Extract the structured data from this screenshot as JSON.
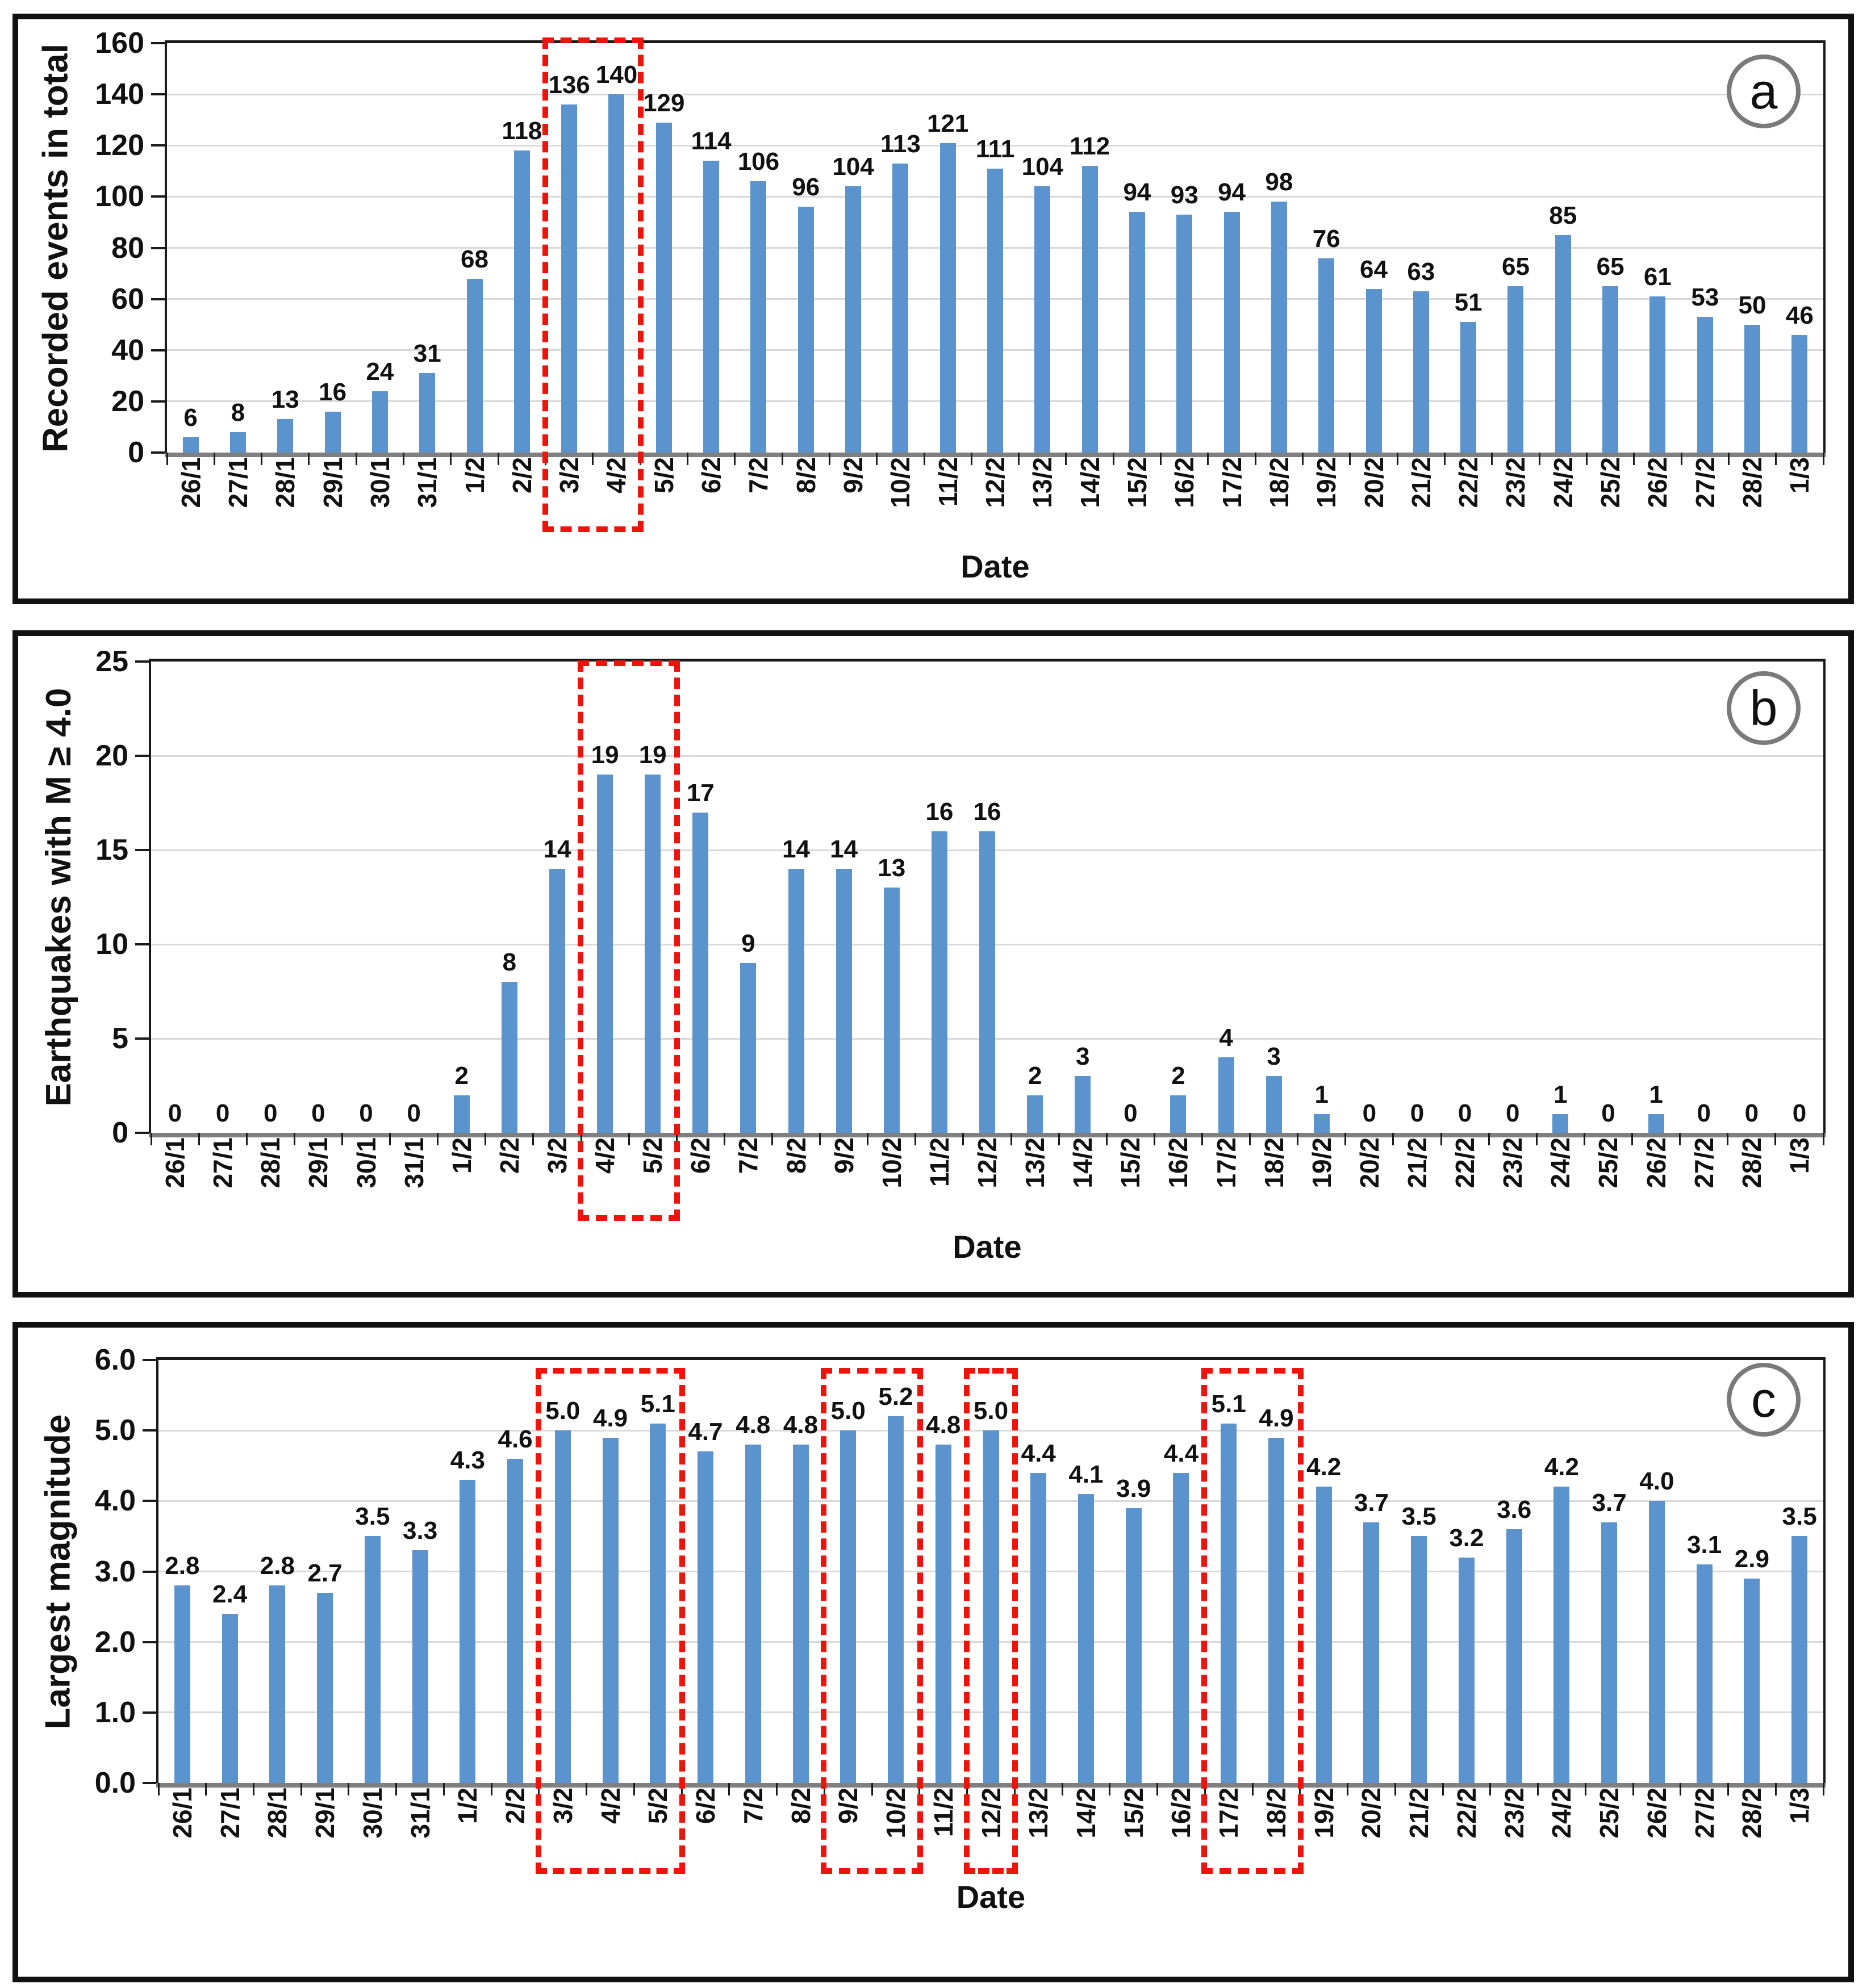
{
  "styles": {
    "bar_color": "#5b93ce",
    "highlight_color": "#ee130b",
    "grid_color": "#d9d9d9",
    "axis_color": "#1a1a1a",
    "baseline_color": "#7f7f7f",
    "panel_border_color": "#111111",
    "badge_ring_color": "#7a7a7a"
  },
  "chart_data": [
    {
      "type": "bar",
      "panel": "a",
      "title": "",
      "ylabel": "Recorded events in total",
      "xlabel": "Date",
      "ylim": [
        0,
        160
      ],
      "ytick_labels": [
        "0",
        "20",
        "40",
        "60",
        "80",
        "100",
        "120",
        "140",
        "160"
      ],
      "grid": true,
      "legend": "none",
      "categories": [
        "26/1",
        "27/1",
        "28/1",
        "29/1",
        "30/1",
        "31/1",
        "1/2",
        "2/2",
        "3/2",
        "4/2",
        "5/2",
        "6/2",
        "7/2",
        "8/2",
        "9/2",
        "10/2",
        "11/2",
        "12/2",
        "13/2",
        "14/2",
        "15/2",
        "16/2",
        "17/2",
        "18/2",
        "19/2",
        "20/2",
        "21/2",
        "22/2",
        "23/2",
        "24/2",
        "25/2",
        "26/2",
        "27/2",
        "28/2",
        "1/3"
      ],
      "values": [
        6,
        8,
        13,
        16,
        24,
        31,
        68,
        118,
        136,
        140,
        129,
        114,
        106,
        96,
        104,
        113,
        121,
        111,
        104,
        112,
        94,
        93,
        94,
        98,
        76,
        64,
        63,
        51,
        65,
        85,
        65,
        61,
        53,
        50,
        46
      ],
      "bar_labels": [
        "6",
        "8",
        "13",
        "16",
        "24",
        "31",
        "68",
        "118",
        "136",
        "140",
        "129",
        "114",
        "106",
        "96",
        "104",
        "113",
        "121",
        "111",
        "104",
        "112",
        "94",
        "93",
        "94",
        "98",
        "76",
        "64",
        "63",
        "51",
        "65",
        "85",
        "65",
        "61",
        "53",
        "50",
        "46"
      ],
      "highlight_boxes": [
        {
          "start_index": 8,
          "end_index": 9,
          "categories": [
            "3/2",
            "4/2"
          ]
        }
      ]
    },
    {
      "type": "bar",
      "panel": "b",
      "title": "",
      "ylabel": "Earthquakes with M ≥ 4.0",
      "xlabel": "Date",
      "ylim": [
        0,
        25
      ],
      "ytick_labels": [
        "0",
        "5",
        "10",
        "15",
        "20",
        "25"
      ],
      "grid": true,
      "legend": "none",
      "categories": [
        "26/1",
        "27/1",
        "28/1",
        "29/1",
        "30/1",
        "31/1",
        "1/2",
        "2/2",
        "3/2",
        "4/2",
        "5/2",
        "6/2",
        "7/2",
        "8/2",
        "9/2",
        "10/2",
        "11/2",
        "12/2",
        "13/2",
        "14/2",
        "15/2",
        "16/2",
        "17/2",
        "18/2",
        "19/2",
        "20/2",
        "21/2",
        "22/2",
        "23/2",
        "24/2",
        "25/2",
        "26/2",
        "27/2",
        "28/2",
        "1/3"
      ],
      "values": [
        0,
        0,
        0,
        0,
        0,
        0,
        2,
        8,
        14,
        19,
        19,
        17,
        9,
        14,
        14,
        13,
        16,
        16,
        2,
        3,
        0,
        2,
        4,
        3,
        1,
        0,
        0,
        0,
        0,
        1,
        0,
        1,
        0,
        0,
        0
      ],
      "bar_labels": [
        "0",
        "0",
        "0",
        "0",
        "0",
        "0",
        "2",
        "8",
        "14",
        "19",
        "19",
        "17",
        "9",
        "14",
        "14",
        "13",
        "16",
        "16",
        "2",
        "3",
        "0",
        "2",
        "4",
        "3",
        "1",
        "0",
        "0",
        "0",
        "0",
        "1",
        "0",
        "1",
        "0",
        "0",
        "0"
      ],
      "highlight_boxes": [
        {
          "start_index": 9,
          "end_index": 10,
          "categories": [
            "4/2",
            "5/2"
          ]
        }
      ]
    },
    {
      "type": "bar",
      "panel": "c",
      "title": "",
      "ylabel": "Largest magnitude",
      "xlabel": "Date",
      "ylim": [
        0,
        6
      ],
      "ytick_labels": [
        "0.0",
        "1.0",
        "2.0",
        "3.0",
        "4.0",
        "5.0",
        "6.0"
      ],
      "grid": true,
      "legend": "none",
      "categories": [
        "26/1",
        "27/1",
        "28/1",
        "29/1",
        "30/1",
        "31/1",
        "1/2",
        "2/2",
        "3/2",
        "4/2",
        "5/2",
        "6/2",
        "7/2",
        "8/2",
        "9/2",
        "10/2",
        "11/2",
        "12/2",
        "13/2",
        "14/2",
        "15/2",
        "16/2",
        "17/2",
        "18/2",
        "19/2",
        "20/2",
        "21/2",
        "22/2",
        "23/2",
        "24/2",
        "25/2",
        "26/2",
        "27/2",
        "28/2",
        "1/3"
      ],
      "values": [
        2.8,
        2.4,
        2.8,
        2.7,
        3.5,
        3.3,
        4.3,
        4.6,
        5.0,
        4.9,
        5.1,
        4.7,
        4.8,
        4.8,
        5.0,
        5.2,
        4.8,
        5.0,
        4.4,
        4.1,
        3.9,
        4.4,
        5.1,
        4.9,
        4.2,
        3.7,
        3.5,
        3.2,
        3.6,
        4.2,
        3.7,
        4.0,
        3.1,
        2.9,
        3.5
      ],
      "bar_labels": [
        "2.8",
        "2.4",
        "2.8",
        "2.7",
        "3.5",
        "3.3",
        "4.3",
        "4.6",
        "5.0",
        "4.9",
        "5.1",
        "4.7",
        "4.8",
        "4.8",
        "5.0",
        "5.2",
        "4.8",
        "5.0",
        "4.4",
        "4.1",
        "3.9",
        "4.4",
        "5.1",
        "4.9",
        "4.2",
        "3.7",
        "3.5",
        "3.2",
        "3.6",
        "4.2",
        "3.7",
        "4.0",
        "3.1",
        "2.9",
        "3.5"
      ],
      "highlight_boxes": [
        {
          "start_index": 8,
          "end_index": 10,
          "categories": [
            "3/2",
            "4/2",
            "5/2"
          ]
        },
        {
          "start_index": 14,
          "end_index": 15,
          "categories": [
            "9/2",
            "10/2"
          ]
        },
        {
          "start_index": 17,
          "end_index": 17,
          "categories": [
            "12/2"
          ]
        },
        {
          "start_index": 22,
          "end_index": 23,
          "categories": [
            "17/2",
            "18/2"
          ]
        }
      ]
    }
  ]
}
